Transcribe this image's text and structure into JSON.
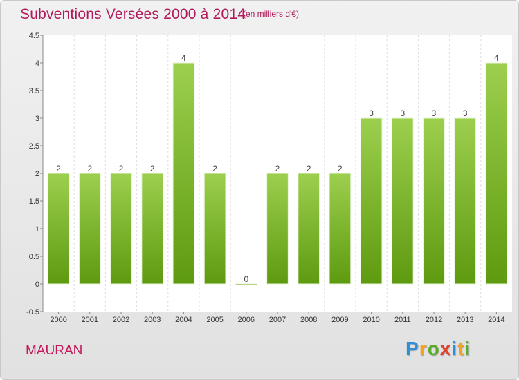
{
  "chart_data": {
    "type": "bar",
    "title": "Subventions Versées 2000 à 2014",
    "subtitle": "(en milliers d'€)",
    "categories": [
      "2000",
      "2001",
      "2002",
      "2003",
      "2004",
      "2005",
      "2006",
      "2007",
      "2008",
      "2009",
      "2010",
      "2011",
      "2012",
      "2013",
      "2014"
    ],
    "values": [
      2,
      2,
      2,
      2,
      4,
      2,
      0,
      2,
      2,
      2,
      3,
      3,
      3,
      3,
      4
    ],
    "data_labels": [
      "2",
      "2",
      "2",
      "2",
      "4",
      "2",
      "0",
      "2",
      "2",
      "2",
      "3",
      "3",
      "3",
      "3",
      "4"
    ],
    "yticks": [
      "-0.5",
      "0",
      "0.5",
      "1",
      "1.5",
      "2",
      "2.5",
      "3",
      "3.5",
      "4",
      "4.5"
    ],
    "ylim": [
      -0.5,
      4.5
    ],
    "xlabel": "",
    "ylabel": "",
    "grid": "vertical",
    "legend": "none",
    "bar_color_top": "#9ccf4e",
    "bar_color_bottom": "#5e9a10"
  },
  "footer": {
    "city": "MAURAN",
    "brand_letters": [
      "P",
      "r",
      "o",
      "x",
      "i",
      "t",
      "i"
    ],
    "brand_colors": [
      "#2f8fd6",
      "#f0a22a",
      "#5aab2a",
      "#e0432b",
      "#2f8fd6",
      "#f0a22a",
      "#5aab2a"
    ]
  }
}
